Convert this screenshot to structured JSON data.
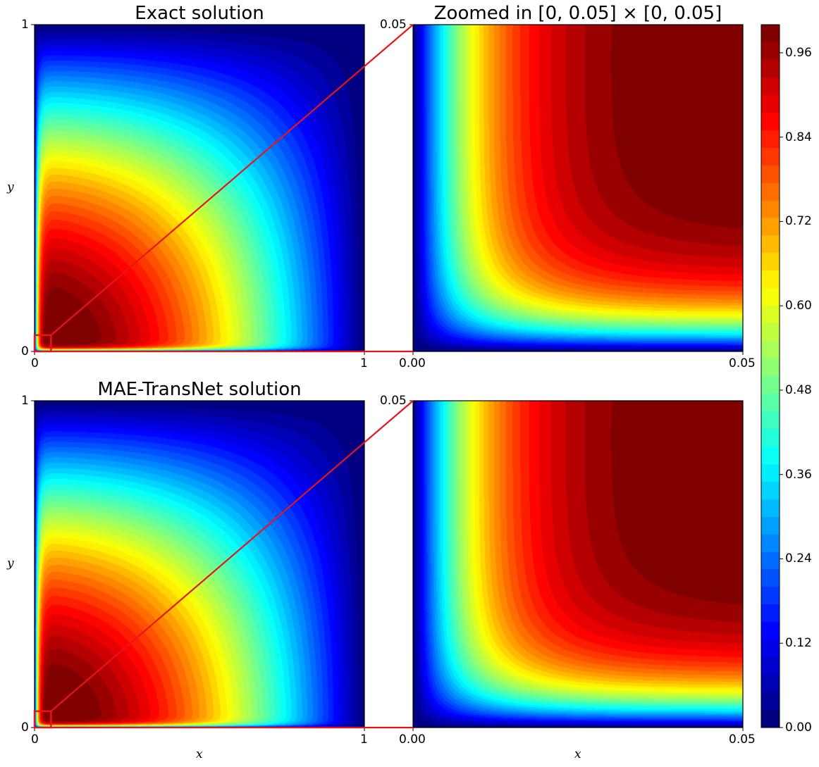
{
  "chart_data": [
    {
      "type": "heatmap",
      "title": "Exact solution",
      "xlabel": "",
      "ylabel": "y",
      "xlim": [
        0,
        1
      ],
      "ylim": [
        0,
        1
      ],
      "xticks": [
        "0",
        "1"
      ],
      "yticks": [
        "0",
        "1"
      ],
      "zoom_box": {
        "x": [
          0,
          0.05
        ],
        "y": [
          0,
          0.05
        ]
      }
    },
    {
      "type": "heatmap",
      "title": "Zoomed in [0, 0.05] × [0, 0.05]",
      "xlabel": "",
      "ylabel": "",
      "xlim": [
        0,
        0.05
      ],
      "ylim": [
        0,
        0.05
      ],
      "xticks": [
        "0.00",
        "0.05"
      ],
      "yticks": [
        "0.05"
      ]
    },
    {
      "type": "heatmap",
      "title": "MAE-TransNet solution",
      "xlabel": "x",
      "ylabel": "y",
      "xlim": [
        0,
        1
      ],
      "ylim": [
        0,
        1
      ],
      "xticks": [
        "0",
        "1"
      ],
      "yticks": [
        "0",
        "1"
      ],
      "zoom_box": {
        "x": [
          0,
          0.05
        ],
        "y": [
          0,
          0.05
        ]
      }
    },
    {
      "type": "heatmap",
      "title": "",
      "xlabel": "x",
      "ylabel": "",
      "xlim": [
        0,
        0.05
      ],
      "ylim": [
        0,
        0.05
      ],
      "xticks": [
        "0.00",
        "0.05"
      ],
      "yticks": [
        "0.05"
      ]
    }
  ],
  "colorbar": {
    "colormap": "jet",
    "range": [
      0.0,
      1.0
    ],
    "levels": 40,
    "ticks": [
      "0.00",
      "0.12",
      "0.24",
      "0.36",
      "0.48",
      "0.60",
      "0.72",
      "0.84",
      "0.96"
    ]
  },
  "zoom_line_color": "#e8141c"
}
